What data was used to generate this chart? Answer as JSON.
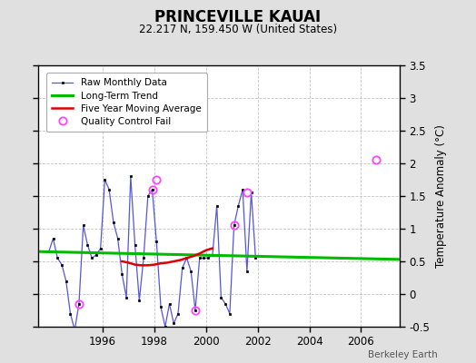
{
  "title": "PRINCEVILLE KAUAI",
  "subtitle": "22.217 N, 159.450 W (United States)",
  "credit": "Berkeley Earth",
  "ylabel_right": "Temperature Anomaly (°C)",
  "ylim": [
    -0.5,
    3.5
  ],
  "xlim": [
    1993.5,
    2007.5
  ],
  "yticks": [
    -0.5,
    0.0,
    0.5,
    1.0,
    1.5,
    2.0,
    2.5,
    3.0,
    3.5
  ],
  "xticks": [
    1996,
    1998,
    2000,
    2002,
    2004,
    2006
  ],
  "bg_color": "#e0e0e0",
  "plot_bg_color": "#ffffff",
  "raw_x": [
    1993.917,
    1994.083,
    1994.25,
    1994.417,
    1994.583,
    1994.75,
    1994.917,
    1995.083,
    1995.25,
    1995.417,
    1995.583,
    1995.75,
    1995.917,
    1996.083,
    1996.25,
    1996.417,
    1996.583,
    1996.75,
    1996.917,
    1997.083,
    1997.25,
    1997.417,
    1997.583,
    1997.75,
    1997.917,
    1998.083,
    1998.25,
    1998.417,
    1998.583,
    1998.75,
    1998.917,
    1999.083,
    1999.25,
    1999.417,
    1999.583,
    1999.75,
    1999.917,
    2000.083,
    2000.25,
    2000.417,
    2000.583,
    2000.75,
    2000.917,
    2001.083,
    2001.25,
    2001.417,
    2001.583,
    2001.75,
    2001.917
  ],
  "raw_y": [
    0.65,
    0.85,
    0.55,
    0.45,
    0.2,
    -0.3,
    -0.55,
    -0.15,
    1.05,
    0.75,
    0.55,
    0.6,
    0.7,
    1.75,
    1.6,
    1.1,
    0.85,
    0.3,
    -0.05,
    1.8,
    0.75,
    -0.1,
    0.55,
    1.5,
    1.6,
    0.8,
    -0.2,
    -0.5,
    -0.15,
    -0.45,
    -0.3,
    0.4,
    0.55,
    0.35,
    -0.25,
    0.55,
    0.55,
    0.55,
    0.6,
    1.35,
    -0.05,
    -0.15,
    -0.3,
    1.05,
    1.35,
    1.6,
    0.35,
    1.55,
    0.55
  ],
  "qc_fail_x": [
    1994.917,
    1995.083,
    1997.917,
    1998.083,
    1999.583,
    2001.083,
    2001.583,
    2006.583
  ],
  "qc_fail_y": [
    -0.55,
    -0.15,
    1.6,
    1.75,
    -0.25,
    1.05,
    1.55,
    2.05
  ],
  "moving_avg_x": [
    1996.75,
    1997.0,
    1997.25,
    1997.5,
    1997.75,
    1998.0,
    1998.25,
    1998.5,
    1998.75,
    1999.0,
    1999.25,
    1999.5,
    1999.75,
    2000.0,
    2000.25
  ],
  "moving_avg_y": [
    0.5,
    0.48,
    0.45,
    0.44,
    0.44,
    0.45,
    0.47,
    0.48,
    0.5,
    0.52,
    0.55,
    0.58,
    0.62,
    0.67,
    0.7
  ],
  "trend_x": [
    1993.5,
    2007.5
  ],
  "trend_y": [
    0.65,
    0.53
  ],
  "raw_color": "#5555dd",
  "raw_marker_color": "#000000",
  "qc_color": "#ff44ff",
  "moving_avg_color": "#dd0000",
  "trend_color": "#00bb00",
  "grid_color": "#bbbbbb"
}
